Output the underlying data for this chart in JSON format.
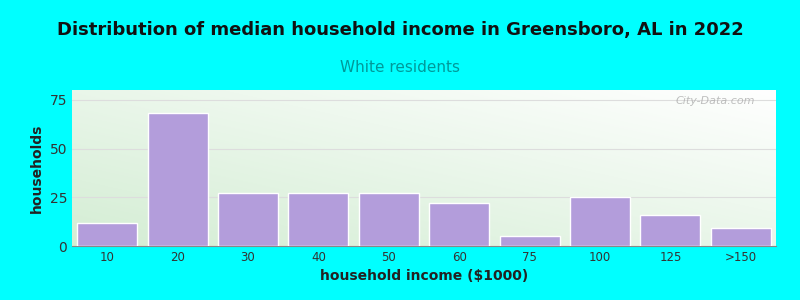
{
  "title": "Distribution of median household income in Greensboro, AL in 2022",
  "subtitle": "White residents",
  "xlabel": "household income ($1000)",
  "ylabel": "households",
  "title_fontsize": 13,
  "subtitle_fontsize": 11,
  "subtitle_color": "#009999",
  "bar_categories": [
    "10",
    "20",
    "30",
    "40",
    "50",
    "60",
    "75",
    "100",
    "125",
    ">150"
  ],
  "bar_values": [
    12,
    68,
    27,
    27,
    27,
    22,
    5,
    25,
    16,
    9
  ],
  "bar_color": "#b39ddb",
  "bar_edgecolor": "#ffffff",
  "ylim": [
    0,
    80
  ],
  "yticks": [
    0,
    25,
    50,
    75
  ],
  "background_color": "#00ffff",
  "plot_bg_color1": "#d4edda",
  "plot_bg_color2": "#ffffff",
  "grid_color": "#dddddd",
  "watermark": "City-Data.com"
}
